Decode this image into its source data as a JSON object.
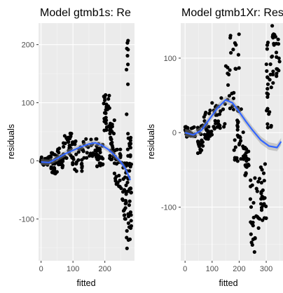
{
  "colors": {
    "panel_bg": "#ebebeb",
    "grid_major": "#ffffff",
    "points": "#000000",
    "smooth_line": "#3366ff",
    "ribbon": "#999999"
  },
  "chart_data": [
    {
      "type": "scatter",
      "title": "Model gtmb1s: Re",
      "xlabel": "fitted",
      "ylabel": "residuals",
      "xlim": [
        -8,
        293
      ],
      "ylim": [
        -172,
        237
      ],
      "xticks": [
        0,
        100,
        200
      ],
      "yticks": [
        -100,
        0,
        100,
        200
      ],
      "grid": true,
      "smooth": [
        {
          "x": 0,
          "y": -2
        },
        {
          "x": 25,
          "y": -3
        },
        {
          "x": 50,
          "y": 4
        },
        {
          "x": 75,
          "y": 12
        },
        {
          "x": 100,
          "y": 18
        },
        {
          "x": 125,
          "y": 24
        },
        {
          "x": 150,
          "y": 29
        },
        {
          "x": 170,
          "y": 31
        },
        {
          "x": 190,
          "y": 27
        },
        {
          "x": 210,
          "y": 20
        },
        {
          "x": 230,
          "y": 10
        },
        {
          "x": 250,
          "y": -2
        },
        {
          "x": 265,
          "y": -14
        },
        {
          "x": 280,
          "y": -33
        }
      ],
      "clusters": [
        {
          "x0": -3,
          "x1": 30,
          "y0": -8,
          "y1": 8
        },
        {
          "x0": 30,
          "x1": 50,
          "y0": -22,
          "y1": 14
        },
        {
          "x0": 50,
          "x1": 70,
          "y0": -16,
          "y1": 22
        },
        {
          "x0": 70,
          "x1": 95,
          "y0": 2,
          "y1": 50
        },
        {
          "x0": 95,
          "x1": 130,
          "y0": -18,
          "y1": 38
        },
        {
          "x0": 130,
          "x1": 175,
          "y0": 5,
          "y1": 38
        },
        {
          "x0": 175,
          "x1": 195,
          "y0": -10,
          "y1": 30
        },
        {
          "x0": 195,
          "x1": 215,
          "y0": 35,
          "y1": 115
        },
        {
          "x0": 215,
          "x1": 230,
          "y0": -10,
          "y1": 70
        },
        {
          "x0": 230,
          "x1": 255,
          "y0": -55,
          "y1": 20
        },
        {
          "x0": 255,
          "x1": 268,
          "y0": -105,
          "y1": 5
        },
        {
          "x0": 268,
          "x1": 276,
          "y0": -160,
          "y1": 220
        },
        {
          "x0": 276,
          "x1": 283,
          "y0": -135,
          "y1": 40
        }
      ]
    },
    {
      "type": "scatter",
      "title": "Model gtmb1Xr: Res",
      "xlabel": "fitted",
      "ylabel": "residuals",
      "xlim": [
        -16,
        362
      ],
      "ylim": [
        -172,
        147
      ],
      "xticks": [
        0,
        100,
        200,
        300
      ],
      "yticks": [
        -100,
        0,
        100
      ],
      "grid": true,
      "smooth": [
        {
          "x": 0,
          "y": 0
        },
        {
          "x": 30,
          "y": -3
        },
        {
          "x": 60,
          "y": 3
        },
        {
          "x": 90,
          "y": 18
        },
        {
          "x": 120,
          "y": 33
        },
        {
          "x": 150,
          "y": 44
        },
        {
          "x": 175,
          "y": 40
        },
        {
          "x": 200,
          "y": 28
        },
        {
          "x": 225,
          "y": 15
        },
        {
          "x": 250,
          "y": 3
        },
        {
          "x": 280,
          "y": -10
        },
        {
          "x": 310,
          "y": -18
        },
        {
          "x": 340,
          "y": -20
        },
        {
          "x": 355,
          "y": -12
        }
      ],
      "clusters": [
        {
          "x0": 0,
          "x1": 40,
          "y0": -6,
          "y1": 8
        },
        {
          "x0": 40,
          "x1": 70,
          "y0": -28,
          "y1": 10
        },
        {
          "x0": 70,
          "x1": 100,
          "y0": -12,
          "y1": 30
        },
        {
          "x0": 100,
          "x1": 150,
          "y0": 5,
          "y1": 50
        },
        {
          "x0": 150,
          "x1": 200,
          "y0": 30,
          "y1": 140
        },
        {
          "x0": 180,
          "x1": 215,
          "y0": -40,
          "y1": 40
        },
        {
          "x0": 215,
          "x1": 240,
          "y0": -60,
          "y1": -20
        },
        {
          "x0": 240,
          "x1": 275,
          "y0": -165,
          "y1": -60
        },
        {
          "x0": 275,
          "x1": 300,
          "y0": -125,
          "y1": -40
        },
        {
          "x0": 300,
          "x1": 320,
          "y0": 5,
          "y1": 130
        },
        {
          "x0": 320,
          "x1": 350,
          "y0": 60,
          "y1": 145
        }
      ]
    }
  ]
}
